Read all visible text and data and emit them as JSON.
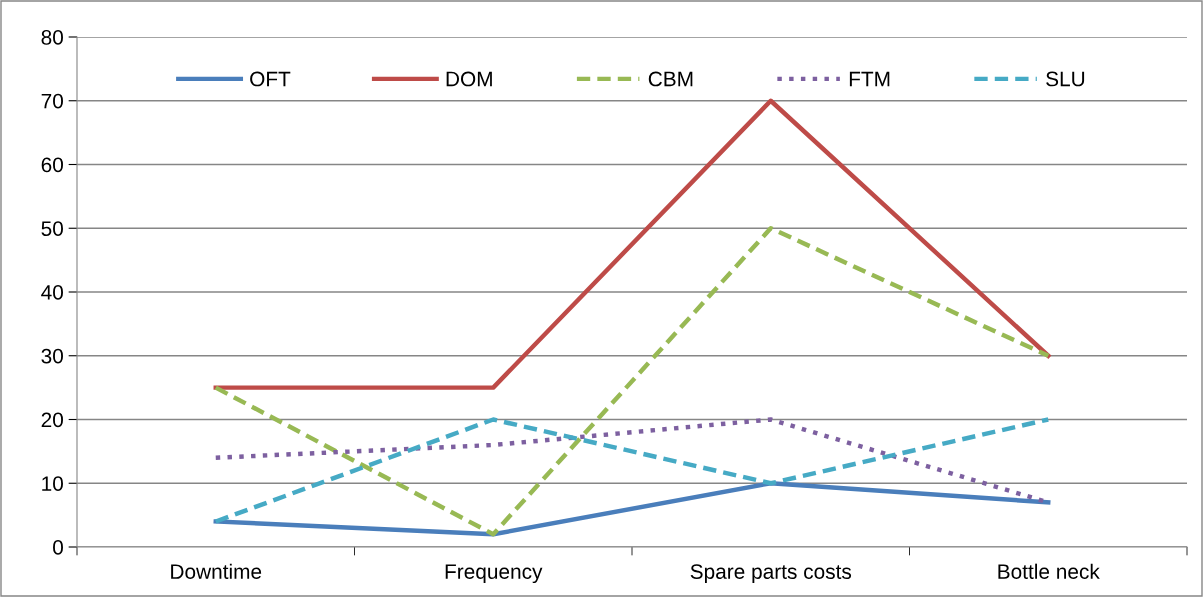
{
  "chart_data": {
    "type": "line",
    "categories": [
      "Downtime",
      "Frequency",
      "Spare parts costs",
      "Bottle neck"
    ],
    "series": [
      {
        "name": "OFT",
        "color": "#4a7ebb",
        "line_style": "solid",
        "values": [
          4,
          2,
          10,
          7
        ]
      },
      {
        "name": "DOM",
        "color": "#be4b48",
        "line_style": "solid",
        "values": [
          25,
          25,
          70,
          30
        ]
      },
      {
        "name": "CBM",
        "color": "#98b954",
        "line_style": "dashed",
        "values": [
          25,
          2,
          50,
          30
        ]
      },
      {
        "name": "FTM",
        "color": "#7d60a0",
        "line_style": "dotted",
        "values": [
          14,
          16,
          20,
          7
        ]
      },
      {
        "name": "SLU",
        "color": "#46aac5",
        "line_style": "dashed",
        "values": [
          4,
          20,
          10,
          20
        ]
      }
    ],
    "ylim": [
      0,
      80
    ],
    "yticks": [
      0,
      10,
      20,
      30,
      40,
      50,
      60,
      70,
      80
    ],
    "grid": "y",
    "legend": "top",
    "marker": "none"
  }
}
